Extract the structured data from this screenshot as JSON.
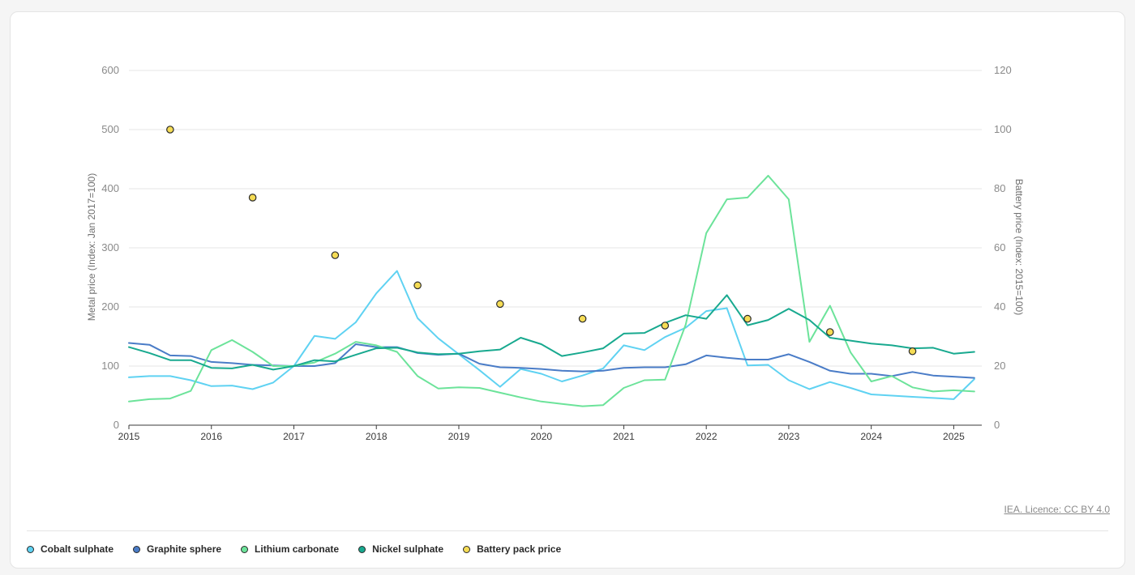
{
  "licence": "IEA. Licence: CC BY 4.0",
  "chart_data": {
    "type": "line",
    "y_left_label": "Metal price (Index: Jan 2017=100)",
    "y_right_label": "Battery price (Index: 2015=100)",
    "y_left_range": [
      0,
      600
    ],
    "y_left_ticks": [
      "0",
      "100",
      "200",
      "300",
      "400",
      "500",
      "600"
    ],
    "y_right_range": [
      0,
      120
    ],
    "y_right_ticks": [
      "0",
      "20",
      "40",
      "60",
      "80",
      "100",
      "120"
    ],
    "x_range": [
      2015,
      2025.34
    ],
    "x_ticks": [
      "2015",
      "2016",
      "2017",
      "2018",
      "2019",
      "2020",
      "2021",
      "2022",
      "2023",
      "2024",
      "2025"
    ],
    "grid": true,
    "legend_position": "bottom",
    "series": [
      {
        "name": "Cobalt sulphate",
        "color": "#5fd2f2",
        "axis": "left",
        "x": [
          2015,
          2015.25,
          2015.5,
          2015.75,
          2016,
          2016.25,
          2016.5,
          2016.75,
          2017,
          2017.25,
          2017.5,
          2017.75,
          2018,
          2018.25,
          2018.5,
          2018.75,
          2019,
          2019.25,
          2019.5,
          2019.75,
          2020,
          2020.25,
          2020.5,
          2020.75,
          2021,
          2021.25,
          2021.5,
          2021.75,
          2022,
          2022.25,
          2022.5,
          2022.75,
          2023,
          2023.25,
          2023.5,
          2023.75,
          2024,
          2024.25,
          2024.5,
          2024.75,
          2025,
          2025.25
        ],
        "y": [
          81,
          83,
          83,
          76,
          66,
          67,
          61,
          72,
          100,
          151,
          146,
          174,
          223,
          261,
          181,
          147,
          120,
          93,
          65,
          95,
          87,
          74,
          84,
          96,
          135,
          127,
          149,
          165,
          193,
          198,
          101,
          102,
          76,
          61,
          73,
          63,
          52,
          50,
          48,
          46,
          44,
          78
        ]
      },
      {
        "name": "Graphite sphere",
        "color": "#4a7cc7",
        "axis": "left",
        "x": [
          2015,
          2015.25,
          2015.5,
          2015.75,
          2016,
          2016.25,
          2016.5,
          2016.75,
          2017,
          2017.25,
          2017.5,
          2017.75,
          2018,
          2018.25,
          2018.5,
          2018.75,
          2019,
          2019.25,
          2019.5,
          2019.75,
          2020,
          2020.25,
          2020.5,
          2020.75,
          2021,
          2021.25,
          2021.5,
          2021.75,
          2022,
          2022.25,
          2022.5,
          2022.75,
          2023,
          2023.25,
          2023.5,
          2023.75,
          2024,
          2024.25,
          2024.5,
          2024.75,
          2025,
          2025.25
        ],
        "y": [
          139,
          136,
          118,
          117,
          107,
          105,
          102,
          101,
          100,
          100,
          105,
          137,
          132,
          132,
          122,
          119,
          121,
          104,
          98,
          97,
          95,
          92,
          91,
          92,
          97,
          98,
          98,
          103,
          118,
          114,
          111,
          111,
          120,
          107,
          92,
          87,
          87,
          83,
          90,
          84,
          82,
          80
        ]
      },
      {
        "name": "Lithium carbonate",
        "color": "#6ce39a",
        "axis": "left",
        "x": [
          2015,
          2015.25,
          2015.5,
          2015.75,
          2016,
          2016.25,
          2016.5,
          2016.75,
          2017,
          2017.25,
          2017.5,
          2017.75,
          2018,
          2018.25,
          2018.5,
          2018.75,
          2019,
          2019.25,
          2019.5,
          2019.75,
          2020,
          2020.25,
          2020.5,
          2020.75,
          2021,
          2021.25,
          2021.5,
          2021.75,
          2022,
          2022.25,
          2022.5,
          2022.75,
          2023,
          2023.25,
          2023.5,
          2023.75,
          2024,
          2024.25,
          2024.5,
          2024.75,
          2025,
          2025.25
        ],
        "y": [
          40,
          44,
          45,
          58,
          127,
          144,
          124,
          100,
          100,
          106,
          121,
          141,
          135,
          124,
          83,
          62,
          64,
          63,
          55,
          47,
          40,
          36,
          32,
          34,
          63,
          76,
          77,
          170,
          325,
          382,
          385,
          422,
          382,
          141,
          202,
          123,
          74,
          83,
          64,
          57,
          59,
          57
        ]
      },
      {
        "name": "Nickel sulphate",
        "color": "#18a98f",
        "axis": "left",
        "x": [
          2015,
          2015.25,
          2015.5,
          2015.75,
          2016,
          2016.25,
          2016.5,
          2016.75,
          2017,
          2017.25,
          2017.5,
          2017.75,
          2018,
          2018.25,
          2018.5,
          2018.75,
          2019,
          2019.25,
          2019.5,
          2019.75,
          2020,
          2020.25,
          2020.5,
          2020.75,
          2021,
          2021.25,
          2021.5,
          2021.75,
          2022,
          2022.25,
          2022.5,
          2022.75,
          2023,
          2023.25,
          2023.5,
          2023.75,
          2024,
          2024.25,
          2024.5,
          2024.75,
          2025,
          2025.25
        ],
        "y": [
          132,
          122,
          110,
          110,
          97,
          96,
          102,
          94,
          100,
          110,
          108,
          119,
          130,
          131,
          123,
          120,
          121,
          125,
          128,
          148,
          137,
          117,
          123,
          130,
          155,
          156,
          173,
          186,
          180,
          220,
          169,
          178,
          197,
          178,
          148,
          143,
          138,
          135,
          130,
          131,
          121,
          124
        ]
      },
      {
        "name": "Battery pack price",
        "color": "#f5dc55",
        "axis": "right",
        "marker": "point",
        "x": [
          2015.5,
          2016.5,
          2017.5,
          2018.5,
          2019.5,
          2020.5,
          2021.5,
          2022.5,
          2023.5,
          2024.5
        ],
        "y": [
          100,
          77,
          57.5,
          47.3,
          41,
          36,
          33.7,
          36,
          31.5,
          25
        ]
      }
    ]
  }
}
